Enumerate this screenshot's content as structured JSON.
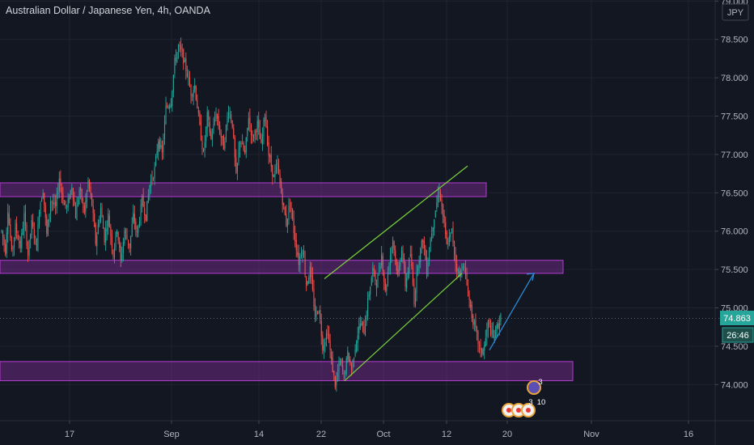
{
  "header": {
    "title": "Australian Dollar / Japanese Yen, 4h, OANDA",
    "currency": "JPY"
  },
  "chart_data": {
    "type": "candlestick",
    "symbol": "AUDJPY",
    "interval": "4h",
    "ylim": [
      73.6,
      79.1
    ],
    "y_ticks": [
      "79.000",
      "78.500",
      "78.000",
      "77.500",
      "77.000",
      "76.500",
      "76.000",
      "75.500",
      "75.000",
      "74.500",
      "74.000"
    ],
    "x_ticks": [
      "17",
      "Sep",
      "14",
      "22",
      "Oct",
      "12",
      "20",
      "Nov",
      "16"
    ],
    "last_price": "74.863",
    "countdown": "26:46",
    "ohlc_path": [
      [
        0,
        76.0
      ],
      [
        3,
        75.75
      ],
      [
        5,
        76.3
      ],
      [
        8,
        75.7
      ],
      [
        11,
        76.05
      ],
      [
        15,
        75.8
      ],
      [
        18,
        76.2
      ],
      [
        21,
        75.7
      ],
      [
        24,
        76.1
      ],
      [
        28,
        75.8
      ],
      [
        30,
        76.3
      ],
      [
        33,
        76.55
      ],
      [
        36,
        75.95
      ],
      [
        39,
        76.4
      ],
      [
        43,
        76.3
      ],
      [
        46,
        76.7
      ],
      [
        49,
        76.4
      ],
      [
        52,
        76.3
      ],
      [
        56,
        76.6
      ],
      [
        59,
        76.2
      ],
      [
        62,
        76.55
      ],
      [
        66,
        76.25
      ],
      [
        69,
        76.65
      ],
      [
        72,
        76.35
      ],
      [
        75,
        75.85
      ],
      [
        79,
        76.3
      ],
      [
        82,
        75.9
      ],
      [
        85,
        76.2
      ],
      [
        89,
        75.7
      ],
      [
        92,
        76.05
      ],
      [
        95,
        75.6
      ],
      [
        98,
        76.0
      ],
      [
        102,
        75.8
      ],
      [
        105,
        76.2
      ],
      [
        108,
        75.95
      ],
      [
        112,
        76.4
      ],
      [
        115,
        76.2
      ],
      [
        118,
        76.6
      ],
      [
        122,
        76.8
      ],
      [
        125,
        77.2
      ],
      [
        128,
        77.0
      ],
      [
        131,
        77.6
      ],
      [
        135,
        77.7
      ],
      [
        138,
        78.2
      ],
      [
        141,
        78.4
      ],
      [
        144,
        78.3
      ],
      [
        148,
        78.05
      ],
      [
        151,
        77.8
      ],
      [
        154,
        77.9
      ],
      [
        158,
        77.35
      ],
      [
        161,
        77.0
      ],
      [
        164,
        77.5
      ],
      [
        167,
        77.2
      ],
      [
        171,
        77.55
      ],
      [
        174,
        77.3
      ],
      [
        177,
        77.1
      ],
      [
        181,
        77.6
      ],
      [
        184,
        77.4
      ],
      [
        187,
        76.7
      ],
      [
        190,
        77.2
      ],
      [
        194,
        77.0
      ],
      [
        197,
        77.5
      ],
      [
        200,
        77.2
      ],
      [
        204,
        77.4
      ],
      [
        207,
        77.1
      ],
      [
        210,
        77.55
      ],
      [
        213,
        77.0
      ],
      [
        217,
        76.7
      ],
      [
        220,
        76.85
      ],
      [
        223,
        76.5
      ],
      [
        227,
        76.1
      ],
      [
        230,
        76.4
      ],
      [
        233,
        76.0
      ],
      [
        237,
        75.6
      ],
      [
        240,
        75.8
      ],
      [
        243,
        75.3
      ],
      [
        246,
        75.5
      ],
      [
        250,
        74.9
      ],
      [
        253,
        75.0
      ],
      [
        256,
        74.5
      ],
      [
        260,
        74.7
      ],
      [
        263,
        74.3
      ],
      [
        266,
        74.0
      ],
      [
        270,
        74.3
      ],
      [
        273,
        74.1
      ],
      [
        276,
        74.4
      ],
      [
        279,
        74.2
      ],
      [
        283,
        74.6
      ],
      [
        286,
        74.8
      ],
      [
        289,
        74.7
      ],
      [
        293,
        75.2
      ],
      [
        296,
        75.5
      ],
      [
        299,
        75.3
      ],
      [
        303,
        75.7
      ],
      [
        306,
        75.2
      ],
      [
        309,
        75.6
      ],
      [
        312,
        75.9
      ],
      [
        316,
        75.4
      ],
      [
        319,
        75.8
      ],
      [
        322,
        75.3
      ],
      [
        326,
        75.7
      ],
      [
        329,
        75.1
      ],
      [
        332,
        75.6
      ],
      [
        336,
        75.9
      ],
      [
        339,
        75.5
      ],
      [
        342,
        75.9
      ],
      [
        345,
        76.2
      ],
      [
        349,
        76.55
      ],
      [
        352,
        76.2
      ],
      [
        355,
        75.8
      ],
      [
        359,
        76.0
      ],
      [
        362,
        75.6
      ],
      [
        365,
        75.4
      ],
      [
        368,
        75.6
      ],
      [
        372,
        75.2
      ],
      [
        375,
        74.9
      ],
      [
        378,
        74.7
      ],
      [
        382,
        74.4
      ],
      [
        385,
        74.5
      ],
      [
        388,
        74.8
      ],
      [
        392,
        74.6
      ],
      [
        395,
        74.75
      ],
      [
        398,
        74.87
      ]
    ],
    "zones": [
      {
        "low": 76.45,
        "high": 76.63,
        "x0": 0,
        "x1": 601
      },
      {
        "low": 75.45,
        "high": 75.62,
        "x0": 0,
        "x1": 696
      },
      {
        "low": 74.05,
        "high": 74.3,
        "x0": 0,
        "x1": 708
      }
    ],
    "channel_lines": [
      {
        "from": [
          "Sep 23",
          75.38
        ],
        "to": [
          "Oct 13",
          76.85
        ]
      },
      {
        "from": [
          "Sep 26",
          74.05
        ],
        "to": [
          "Oct 14",
          75.45
        ]
      }
    ],
    "projection_arrow": {
      "from": [
        "Oct 18",
        74.45
      ],
      "to": [
        "Oct 23",
        75.45
      ]
    },
    "event_badges": [
      {
        "label": "3"
      },
      {
        "label": "3"
      },
      {
        "label": "10"
      }
    ],
    "colors": {
      "background": "#131722",
      "up": "#26a69a",
      "down": "#ef5350",
      "zone_fill": "#6b2a82",
      "zone_border": "#b43cd2",
      "channel": "#7ad13a",
      "arrow": "#2a8ad4",
      "price_badge": "#26a69a"
    },
    "grid": true
  }
}
